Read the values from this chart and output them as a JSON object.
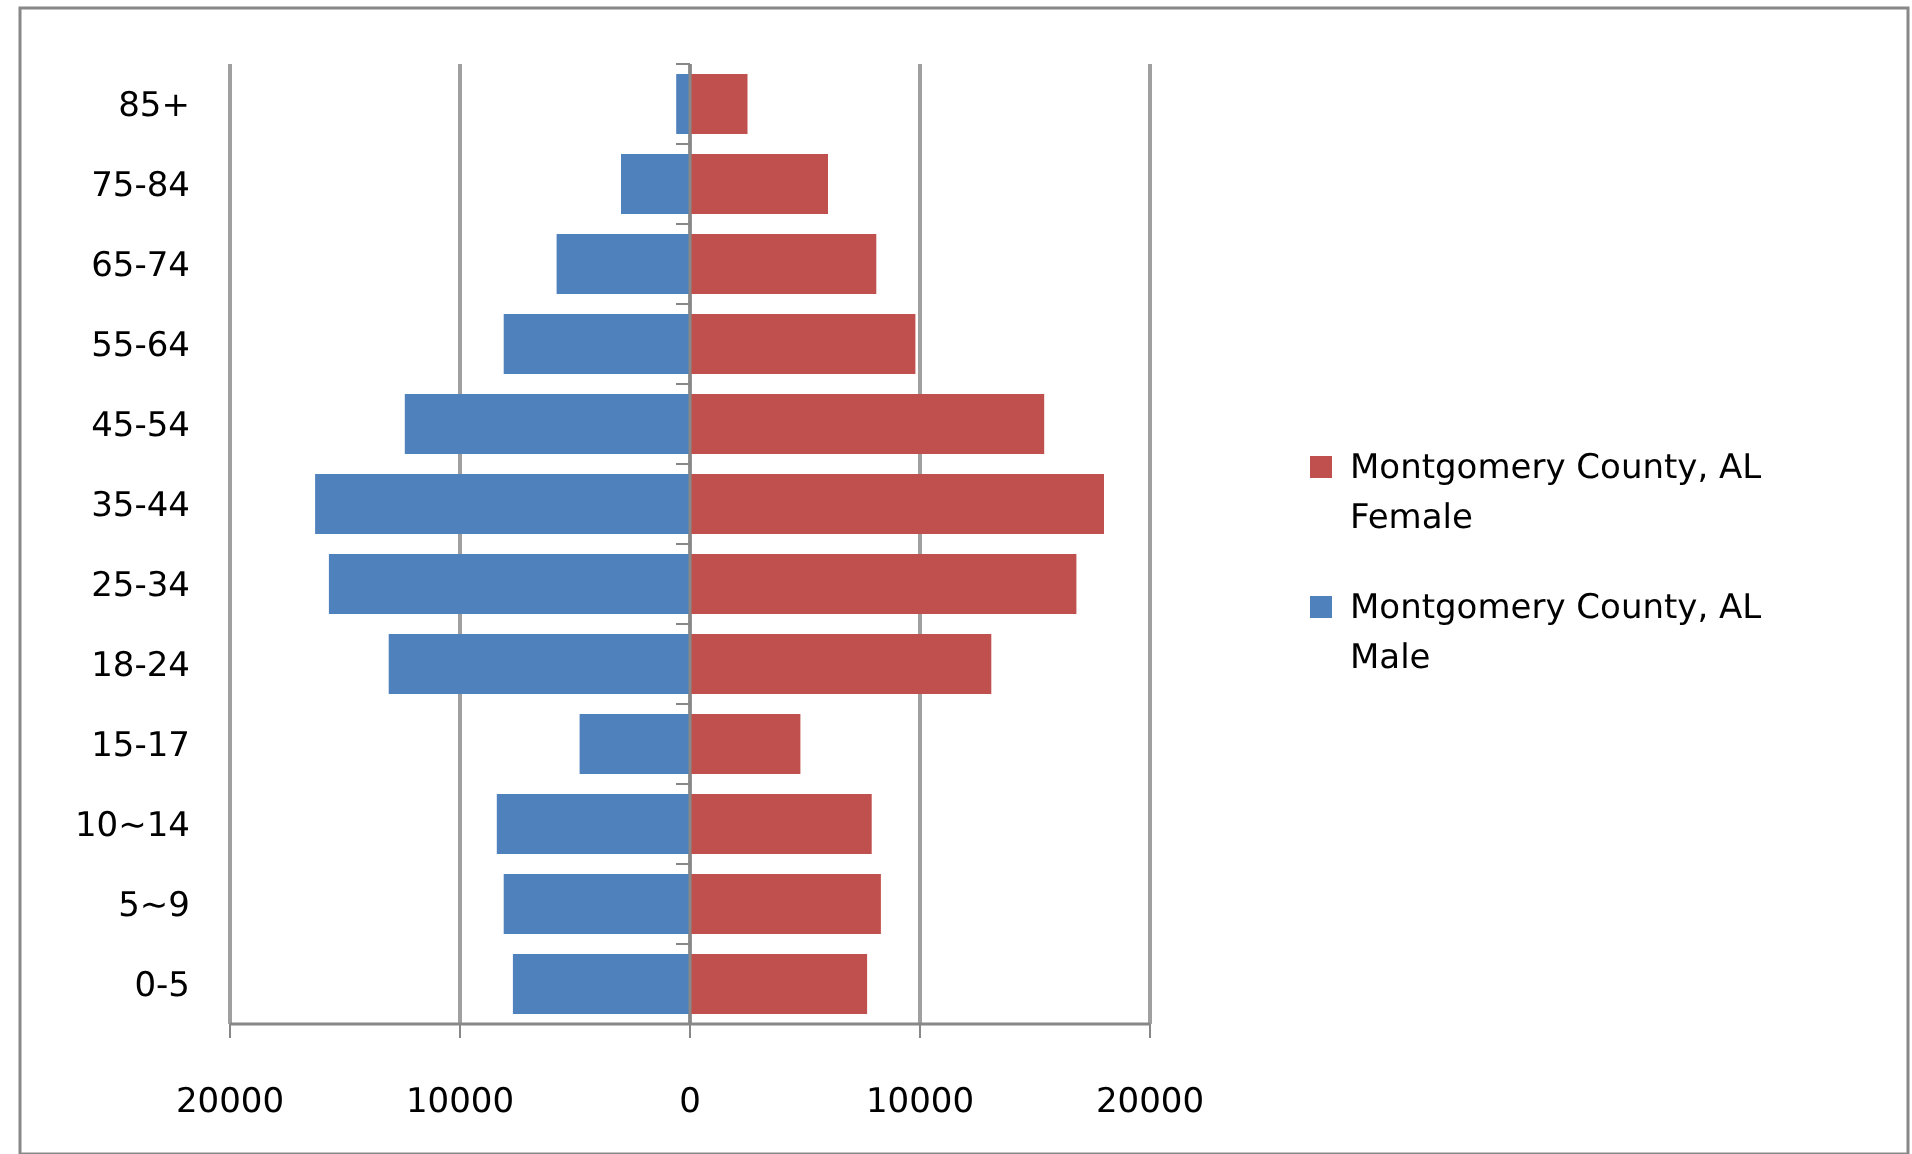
{
  "chart_data": {
    "type": "bar",
    "orientation": "horizontal",
    "stacked": true,
    "categories": [
      "85+",
      "75-84",
      "65-74",
      "55-64",
      "45-54",
      "35-44",
      "25-34",
      "18-24",
      "15-17",
      "10~14",
      "5~9",
      "0-5"
    ],
    "series": [
      {
        "name": "Montgomery County, AL Female",
        "color": "#c0504d",
        "values": [
          2500,
          6000,
          8100,
          9800,
          15400,
          18000,
          16800,
          13100,
          4800,
          7900,
          8300,
          7700
        ]
      },
      {
        "name": "Montgomery County, AL Male",
        "color": "#4f81bd",
        "values": [
          -600,
          -3000,
          -5800,
          -8100,
          -12400,
          -16300,
          -15700,
          -13100,
          -4800,
          -8400,
          -8100,
          -7700
        ]
      }
    ],
    "xlim": [
      -20000,
      20000
    ],
    "xticks": [
      {
        "value": -20000,
        "label": "20000"
      },
      {
        "value": -10000,
        "label": "10000"
      },
      0,
      10000,
      20000
    ],
    "grid": "x",
    "legend": "right"
  }
}
